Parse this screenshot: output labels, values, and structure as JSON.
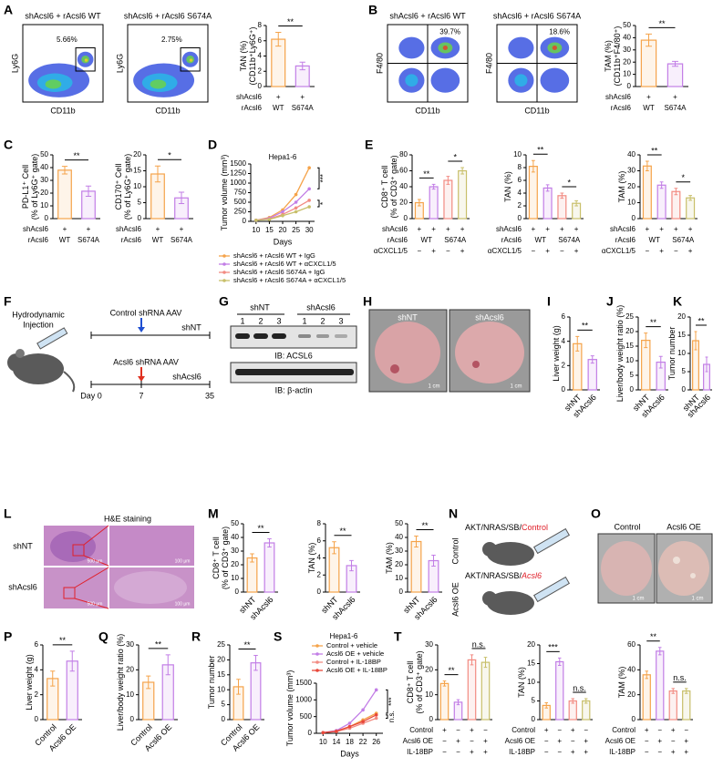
{
  "chart_data": [
    {
      "type": "bar",
      "ylabel": [
        "TAN (%)",
        "(CD11b⁺Ly6G⁺)"
      ],
      "values": [
        6.2,
        2.7
      ],
      "errors": [
        0.9,
        0.5
      ],
      "colors": [
        "#f5a34a",
        "#c27ee6"
      ],
      "ylim": [
        0,
        8
      ],
      "yticks": [
        0,
        2,
        4,
        6,
        8
      ],
      "significance": [
        "**"
      ],
      "rows": [
        {
          "name": "shAcsl6",
          "cells": [
            "+",
            "+"
          ]
        },
        {
          "name": "rAcsl6",
          "cells": [
            "WT",
            "S674A"
          ]
        }
      ]
    },
    {
      "type": "bar",
      "ylabel": [
        "TAM (%)",
        "(CD11b⁺F4/80⁺)"
      ],
      "values": [
        38,
        18.6
      ],
      "errors": [
        5,
        2
      ],
      "colors": [
        "#f5a34a",
        "#c27ee6"
      ],
      "ylim": [
        0,
        50
      ],
      "yticks": [
        0,
        10,
        20,
        30,
        40,
        50
      ],
      "significance": [
        "**"
      ],
      "rows": [
        {
          "name": "shAcsl6",
          "cells": [
            "+",
            "+"
          ]
        },
        {
          "name": "rAcsl6",
          "cells": [
            "WT",
            "S674A"
          ]
        }
      ]
    },
    {
      "type": "bar",
      "ylabel": [
        "PD-L1⁺ Cell",
        "(% of Ly6G⁺ gate)"
      ],
      "values": [
        38,
        21.5
      ],
      "errors": [
        3,
        4
      ],
      "colors": [
        "#f5a34a",
        "#c27ee6"
      ],
      "ylim": [
        0,
        50
      ],
      "yticks": [
        0,
        10,
        20,
        30,
        40,
        50
      ],
      "significance": [
        "**"
      ],
      "rows": [
        {
          "name": "shAcsl6",
          "cells": [
            "+",
            "+"
          ]
        },
        {
          "name": "rAcsl6",
          "cells": [
            "WT",
            "S674A"
          ]
        }
      ]
    },
    {
      "type": "bar",
      "ylabel": [
        "CD170⁺ Cell",
        "(% of Ly6G⁺ gate)"
      ],
      "values": [
        14,
        6.5
      ],
      "errors": [
        2.5,
        1.8
      ],
      "colors": [
        "#f5a34a",
        "#c27ee6"
      ],
      "ylim": [
        0,
        20
      ],
      "yticks": [
        0,
        5,
        10,
        15,
        20
      ],
      "significance": [
        "*"
      ],
      "rows": [
        {
          "name": "shAcsl6",
          "cells": [
            "+",
            "+"
          ]
        },
        {
          "name": "rAcsl6",
          "cells": [
            "WT",
            "S674A"
          ]
        }
      ]
    },
    {
      "type": "line",
      "title": "Hepa1-6",
      "ylabel": [
        "Tumor volume (mm³)"
      ],
      "xlabel": "Days",
      "x": [
        10,
        15,
        20,
        25,
        30
      ],
      "xlim": [
        8,
        32
      ],
      "xticks": [
        10,
        15,
        20,
        25,
        30
      ],
      "ylim": [
        0,
        1500
      ],
      "yticks": [
        0,
        250,
        500,
        750,
        1000,
        1250,
        1500
      ],
      "legend": "bottom",
      "annotations": [
        "***",
        "*"
      ],
      "series": [
        {
          "name": "shAcsl6 + rAcsl6 WT + IgG",
          "color": "#f5a34a",
          "values": [
            30,
            100,
            300,
            700,
            1400
          ]
        },
        {
          "name": "shAcsl6 + rAcsl6 WT + αCXCL1/5",
          "color": "#c27ee6",
          "values": [
            30,
            80,
            250,
            500,
            850
          ]
        },
        {
          "name": "shAcsl6 + rAcsl6 S674A + IgG",
          "color": "#f28b82",
          "values": [
            30,
            60,
            180,
            350,
            550
          ]
        },
        {
          "name": "shAcsl6 + rAcsl6 S674A + αCXCL1/5",
          "color": "#c8bf6a",
          "values": [
            30,
            50,
            150,
            250,
            380
          ]
        }
      ]
    },
    {
      "type": "bar",
      "ylabel": [
        "CD8⁺ T cell",
        "(% of CD3⁺ gate)"
      ],
      "values": [
        20,
        40,
        48,
        60
      ],
      "errors": [
        4,
        3,
        5,
        4
      ],
      "colors": [
        "#f5a34a",
        "#c27ee6",
        "#f28b82",
        "#c8bf6a"
      ],
      "ylim": [
        0,
        80
      ],
      "yticks": [
        0,
        20,
        40,
        60,
        80
      ],
      "significance": [
        "**",
        "*"
      ],
      "rows": [
        {
          "name": "shAcsl6",
          "cells": [
            "+",
            "+",
            "+",
            "+"
          ]
        },
        {
          "name": "rAcsl6",
          "cells": [
            "WT",
            "S674A"
          ]
        },
        {
          "name": "αCXCL1/5",
          "cells": [
            "−",
            "+",
            "−",
            "+"
          ]
        }
      ]
    },
    {
      "type": "bar",
      "ylabel": [
        "TAN (%)"
      ],
      "values": [
        8.2,
        4.8,
        3.6,
        2.4
      ],
      "errors": [
        0.9,
        0.5,
        0.4,
        0.4
      ],
      "colors": [
        "#f5a34a",
        "#c27ee6",
        "#f28b82",
        "#c8bf6a"
      ],
      "ylim": [
        0,
        10
      ],
      "yticks": [
        0,
        2,
        4,
        6,
        8,
        10
      ],
      "significance": [
        "**",
        "*"
      ],
      "rows": [
        {
          "name": "shAcsl6",
          "cells": [
            "+",
            "+",
            "+",
            "+"
          ]
        },
        {
          "name": "rAcsl6",
          "cells": [
            "WT",
            "S674A"
          ]
        },
        {
          "name": "αCXCL1/5",
          "cells": [
            "−",
            "+",
            "−",
            "+"
          ]
        }
      ]
    },
    {
      "type": "bar",
      "ylabel": [
        "TAM (%)"
      ],
      "values": [
        33,
        21,
        17,
        13
      ],
      "errors": [
        3,
        2,
        2,
        1.5
      ],
      "colors": [
        "#f5a34a",
        "#c27ee6",
        "#f28b82",
        "#c8bf6a"
      ],
      "ylim": [
        0,
        40
      ],
      "yticks": [
        0,
        10,
        20,
        30,
        40
      ],
      "significance": [
        "**",
        "*"
      ],
      "rows": [
        {
          "name": "shAcsl6",
          "cells": [
            "+",
            "+",
            "+",
            "+"
          ]
        },
        {
          "name": "rAcsl6",
          "cells": [
            "WT",
            "S674A"
          ]
        },
        {
          "name": "αCXCL1/5",
          "cells": [
            "−",
            "+",
            "−",
            "+"
          ]
        }
      ]
    },
    {
      "type": "bar",
      "ylabel": [
        "Liver weight (g)"
      ],
      "categories": [
        "shNT",
        "shAcsl6"
      ],
      "values": [
        3.8,
        2.5
      ],
      "errors": [
        0.6,
        0.3
      ],
      "colors": [
        "#f5a34a",
        "#c27ee6"
      ],
      "ylim": [
        0,
        6
      ],
      "yticks": [
        0,
        2,
        4,
        6
      ],
      "significance": [
        "**"
      ]
    },
    {
      "type": "bar",
      "ylabel": [
        "Liver/body weight ratio (%)"
      ],
      "categories": [
        "shNT",
        "shAcsl6"
      ],
      "values": [
        17,
        9.5
      ],
      "errors": [
        2.5,
        2
      ],
      "colors": [
        "#f5a34a",
        "#c27ee6"
      ],
      "ylim": [
        0,
        25
      ],
      "yticks": [
        0,
        5,
        10,
        15,
        20,
        25
      ],
      "significance": [
        "**"
      ]
    },
    {
      "type": "bar",
      "ylabel": [
        "Tumor number"
      ],
      "categories": [
        "shNT",
        "shAcsl6"
      ],
      "values": [
        13.5,
        7
      ],
      "errors": [
        2.5,
        2
      ],
      "colors": [
        "#f5a34a",
        "#c27ee6"
      ],
      "ylim": [
        0,
        20
      ],
      "yticks": [
        0,
        5,
        10,
        15,
        20
      ],
      "significance": [
        "**"
      ]
    },
    {
      "type": "bar",
      "ylabel": [
        "CD8⁺ T cell",
        "(% of CD3⁺ gate)"
      ],
      "categories": [
        "shNT",
        "shAcsl6"
      ],
      "values": [
        25,
        36
      ],
      "errors": [
        3,
        3
      ],
      "colors": [
        "#f5a34a",
        "#c27ee6"
      ],
      "ylim": [
        0,
        50
      ],
      "yticks": [
        0,
        10,
        20,
        30,
        40,
        50
      ],
      "significance": [
        "**"
      ]
    },
    {
      "type": "bar",
      "ylabel": [
        "TAN (%)"
      ],
      "categories": [
        "shNT",
        "shAcsl6"
      ],
      "values": [
        5.2,
        3.1
      ],
      "errors": [
        0.7,
        0.6
      ],
      "colors": [
        "#f5a34a",
        "#c27ee6"
      ],
      "ylim": [
        0,
        8
      ],
      "yticks": [
        0,
        2,
        4,
        6,
        8
      ],
      "significance": [
        "**"
      ]
    },
    {
      "type": "bar",
      "ylabel": [
        "TAM (%)"
      ],
      "categories": [
        "shNT",
        "shAcsl6"
      ],
      "values": [
        37,
        23
      ],
      "errors": [
        4,
        4
      ],
      "colors": [
        "#f5a34a",
        "#c27ee6"
      ],
      "ylim": [
        0,
        50
      ],
      "yticks": [
        0,
        10,
        20,
        30,
        40,
        50
      ],
      "significance": [
        "**"
      ]
    },
    {
      "type": "bar",
      "ylabel": [
        "Liver weight (g)"
      ],
      "categories": [
        "Control",
        "Acsl6 OE"
      ],
      "values": [
        3.3,
        4.7
      ],
      "errors": [
        0.6,
        0.8
      ],
      "colors": [
        "#f5a34a",
        "#c27ee6"
      ],
      "ylim": [
        0,
        6
      ],
      "yticks": [
        0,
        2,
        4,
        6
      ],
      "significance": [
        "**"
      ]
    },
    {
      "type": "bar",
      "ylabel": [
        "Liver/body weight ratio (%)"
      ],
      "categories": [
        "Control",
        "Acsl6 OE"
      ],
      "values": [
        15,
        22
      ],
      "errors": [
        2.5,
        4
      ],
      "colors": [
        "#f5a34a",
        "#c27ee6"
      ],
      "ylim": [
        0,
        30
      ],
      "yticks": [
        0,
        10,
        20,
        30
      ],
      "significance": [
        "**"
      ]
    },
    {
      "type": "bar",
      "ylabel": [
        "Tumor number"
      ],
      "categories": [
        "Control",
        "Acsl6 OE"
      ],
      "values": [
        11,
        19
      ],
      "errors": [
        2.5,
        2.5
      ],
      "colors": [
        "#f5a34a",
        "#c27ee6"
      ],
      "ylim": [
        0,
        25
      ],
      "yticks": [
        0,
        5,
        10,
        15,
        20,
        25
      ],
      "significance": [
        "**"
      ]
    },
    {
      "type": "line",
      "title": "Hepa1-6",
      "ylabel": [
        "Tumor volume (mm³)"
      ],
      "xlabel": "Days",
      "x": [
        10,
        14,
        18,
        22,
        26
      ],
      "xlim": [
        8,
        28
      ],
      "xticks": [
        10,
        14,
        18,
        22,
        26
      ],
      "ylim": [
        0,
        1500
      ],
      "yticks": [
        0,
        500,
        1000,
        1500
      ],
      "legend": "top",
      "annotations": [
        "***",
        "n.s."
      ],
      "series": [
        {
          "name": "Control + vehicle",
          "color": "#f5a34a",
          "values": [
            20,
            60,
            200,
            400,
            600
          ]
        },
        {
          "name": "Acsl6 OE + vehicle",
          "color": "#c27ee6",
          "values": [
            20,
            80,
            300,
            700,
            1300
          ]
        },
        {
          "name": "Control + IL-18BP",
          "color": "#f28b82",
          "values": [
            20,
            50,
            150,
            300,
            450
          ]
        },
        {
          "name": "Acsl6 OE + IL-18BP",
          "color": "#e8473a",
          "values": [
            20,
            60,
            200,
            350,
            550
          ]
        }
      ]
    },
    {
      "type": "bar",
      "ylabel": [
        "CD8⁺ T cell",
        "(% of CD3⁺ gate)"
      ],
      "values": [
        14.5,
        7,
        24,
        23
      ],
      "errors": [
        1,
        1,
        2,
        2
      ],
      "colors": [
        "#f5a34a",
        "#c27ee6",
        "#f28b82",
        "#c8bf6a"
      ],
      "ylim": [
        0,
        30
      ],
      "yticks": [
        0,
        10,
        20,
        30
      ],
      "significance": [
        "**",
        "n.s."
      ],
      "rows": [
        {
          "name": "Control",
          "cells": [
            "+",
            "−",
            "+",
            "−"
          ]
        },
        {
          "name": "Acsl6 OE",
          "cells": [
            "−",
            "+",
            "−",
            "+"
          ]
        },
        {
          "name": "IL-18BP",
          "cells": [
            "−",
            "−",
            "+",
            "+"
          ]
        }
      ]
    },
    {
      "type": "bar",
      "ylabel": [
        "TAN (%)"
      ],
      "values": [
        3.8,
        15.5,
        5,
        5
      ],
      "errors": [
        0.7,
        1,
        0.6,
        0.6
      ],
      "colors": [
        "#f5a34a",
        "#c27ee6",
        "#f28b82",
        "#c8bf6a"
      ],
      "ylim": [
        0,
        20
      ],
      "yticks": [
        0,
        5,
        10,
        15,
        20
      ],
      "significance": [
        "***",
        "n.s."
      ],
      "rows": [
        {
          "name": "Control",
          "cells": [
            "+",
            "−",
            "+",
            "−"
          ]
        },
        {
          "name": "Acsl6 OE",
          "cells": [
            "−",
            "+",
            "−",
            "+"
          ]
        },
        {
          "name": "IL-18BP",
          "cells": [
            "−",
            "−",
            "+",
            "+"
          ]
        }
      ]
    },
    {
      "type": "bar",
      "ylabel": [
        "TAM (%)"
      ],
      "values": [
        36,
        55,
        23,
        23
      ],
      "errors": [
        3,
        3,
        2,
        2
      ],
      "colors": [
        "#f5a34a",
        "#c27ee6",
        "#f28b82",
        "#c8bf6a"
      ],
      "ylim": [
        0,
        60
      ],
      "yticks": [
        0,
        20,
        40,
        60
      ],
      "significance": [
        "**",
        "n.s."
      ],
      "rows": [
        {
          "name": "Control",
          "cells": [
            "+",
            "−",
            "+",
            "−"
          ]
        },
        {
          "name": "Acsl6 OE",
          "cells": [
            "−",
            "+",
            "−",
            "+"
          ]
        },
        {
          "name": "IL-18BP",
          "cells": [
            "−",
            "−",
            "+",
            "+"
          ]
        }
      ]
    }
  ],
  "figure": {
    "panel_labels": [
      "A",
      "B",
      "C",
      "D",
      "E",
      "F",
      "G",
      "H",
      "I",
      "J",
      "K",
      "L",
      "M",
      "N",
      "O",
      "P",
      "Q",
      "R",
      "S",
      "T"
    ],
    "flow": [
      {
        "title": "shAcsl6 + rAcsl6 WT",
        "gate": "5.66%",
        "ylabel": "Ly6G",
        "xlabel": "CD11b"
      },
      {
        "title": "shAcsl6 + rAcsl6 S674A",
        "gate": "2.75%",
        "ylabel": "Ly6G",
        "xlabel": "CD11b"
      },
      {
        "title": "shAcsl6 + rAcsl6 WT",
        "gate": "39.7%",
        "ylabel": "F4/80",
        "xlabel": "CD11b"
      },
      {
        "title": "shAcsl6 + rAcsl6 S674A",
        "gate": "18.6%",
        "ylabel": "F4/80",
        "xlabel": "CD11b"
      }
    ],
    "f": {
      "injection": [
        "Hydrodynamic",
        "Injection"
      ],
      "control_virus": "Control shRNA AAV",
      "control_group": "shNT",
      "oe_virus": "Acsl6 shRNA AAV",
      "oe_group": "shAcsl6",
      "days": [
        "Day 0",
        "7",
        "35"
      ]
    },
    "g": {
      "groups": [
        "shNT",
        "shAcsl6"
      ],
      "lanes": [
        "1",
        "2",
        "3",
        "1",
        "2",
        "3"
      ],
      "blots": [
        "IB: ACSL6",
        "IB: β-actin"
      ]
    },
    "h": {
      "groups": [
        "shNT",
        "shAcsl6"
      ],
      "scale": "1 cm"
    },
    "l": {
      "title": "H&E staining",
      "groups": [
        "shNT",
        "shAcsl6"
      ],
      "scales": [
        "500 μm",
        "100 μm"
      ]
    },
    "n": {
      "construct": "AKT/NRAS/SB/",
      "control": "Control",
      "oe": "Acsl6",
      "groups": [
        "Control",
        "Acsl6 OE"
      ]
    },
    "o": {
      "groups": [
        "Control",
        "Acsl6 OE"
      ],
      "scale": "1 cm"
    }
  }
}
